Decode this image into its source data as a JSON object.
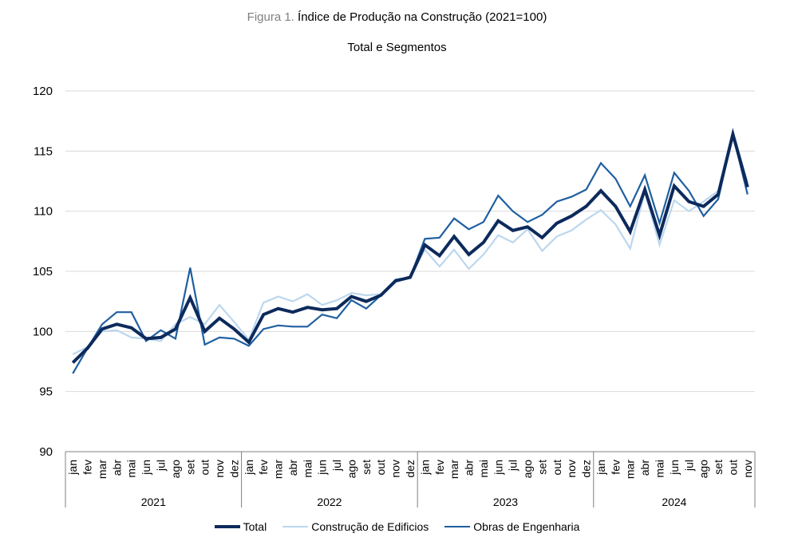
{
  "figure": {
    "prefix": "Figura 1.",
    "title": "Índice de Produção na Construção (2021=100)",
    "subtitle": "Total e Segmentos"
  },
  "colors": {
    "total": "#0d2a5c",
    "edificios": "#bcd7ee",
    "engenharia": "#1f5fa0",
    "grid": "#d9d9d9",
    "axis": "#808080"
  },
  "chart_data": {
    "type": "line",
    "title": "Índice de Produção na Construção (2021=100)",
    "subtitle": "Total e Segmentos",
    "ylim": [
      90,
      120
    ],
    "yticks": [
      90,
      95,
      100,
      105,
      110,
      115,
      120
    ],
    "grid": true,
    "legend_position": "bottom",
    "years": [
      "2021",
      "2022",
      "2023",
      "2024"
    ],
    "months": [
      "jan",
      "fev",
      "mar",
      "abr",
      "mai",
      "jun",
      "jul",
      "ago",
      "set",
      "out",
      "nov",
      "dez"
    ],
    "series": [
      {
        "name": "Total",
        "key": "total",
        "values": [
          97.4,
          98.6,
          100.2,
          100.6,
          100.3,
          99.4,
          99.5,
          100.2,
          102.8,
          100.0,
          101.1,
          100.2,
          99.1,
          101.4,
          101.9,
          101.6,
          102.0,
          101.8,
          101.9,
          102.9,
          102.5,
          103.0,
          104.2,
          104.5,
          107.2,
          106.3,
          107.9,
          106.4,
          107.4,
          109.2,
          108.4,
          108.7,
          107.8,
          109.0,
          109.6,
          110.4,
          111.7,
          110.4,
          108.3,
          111.8,
          108.0,
          112.1,
          110.8,
          110.4,
          111.4,
          116.4,
          112.0
        ]
      },
      {
        "name": "Construção de Edificios",
        "key": "edificios",
        "values": [
          98.1,
          98.7,
          100.0,
          100.1,
          99.5,
          99.4,
          99.2,
          100.6,
          101.2,
          100.6,
          102.2,
          100.8,
          99.3,
          102.4,
          102.9,
          102.5,
          103.1,
          102.2,
          102.6,
          103.2,
          103.0,
          103.1,
          104.3,
          104.5,
          106.8,
          105.4,
          106.8,
          105.2,
          106.4,
          108.0,
          107.4,
          108.5,
          106.7,
          107.9,
          108.4,
          109.3,
          110.1,
          108.9,
          106.9,
          111.6,
          107.2,
          110.9,
          110.0,
          110.8,
          111.7,
          116.6,
          112.4
        ]
      },
      {
        "name": "Obras de Engenharia",
        "key": "engenharia",
        "values": [
          96.5,
          98.6,
          100.6,
          101.6,
          101.6,
          99.2,
          100.1,
          99.4,
          105.3,
          98.9,
          99.5,
          99.4,
          98.8,
          100.2,
          100.5,
          100.4,
          100.4,
          101.4,
          101.1,
          102.6,
          101.9,
          103.0,
          104.3,
          104.5,
          107.7,
          107.8,
          109.4,
          108.5,
          109.1,
          111.3,
          110.0,
          109.1,
          109.7,
          110.8,
          111.2,
          111.8,
          114.0,
          112.7,
          110.4,
          113.0,
          109.0,
          113.2,
          111.7,
          109.6,
          111.0,
          116.4,
          111.4
        ]
      }
    ]
  },
  "legend": {
    "items": [
      {
        "label": "Total",
        "key": "total"
      },
      {
        "label": "Construção de Edificios",
        "key": "edificios"
      },
      {
        "label": "Obras de Engenharia",
        "key": "engenharia"
      }
    ]
  }
}
